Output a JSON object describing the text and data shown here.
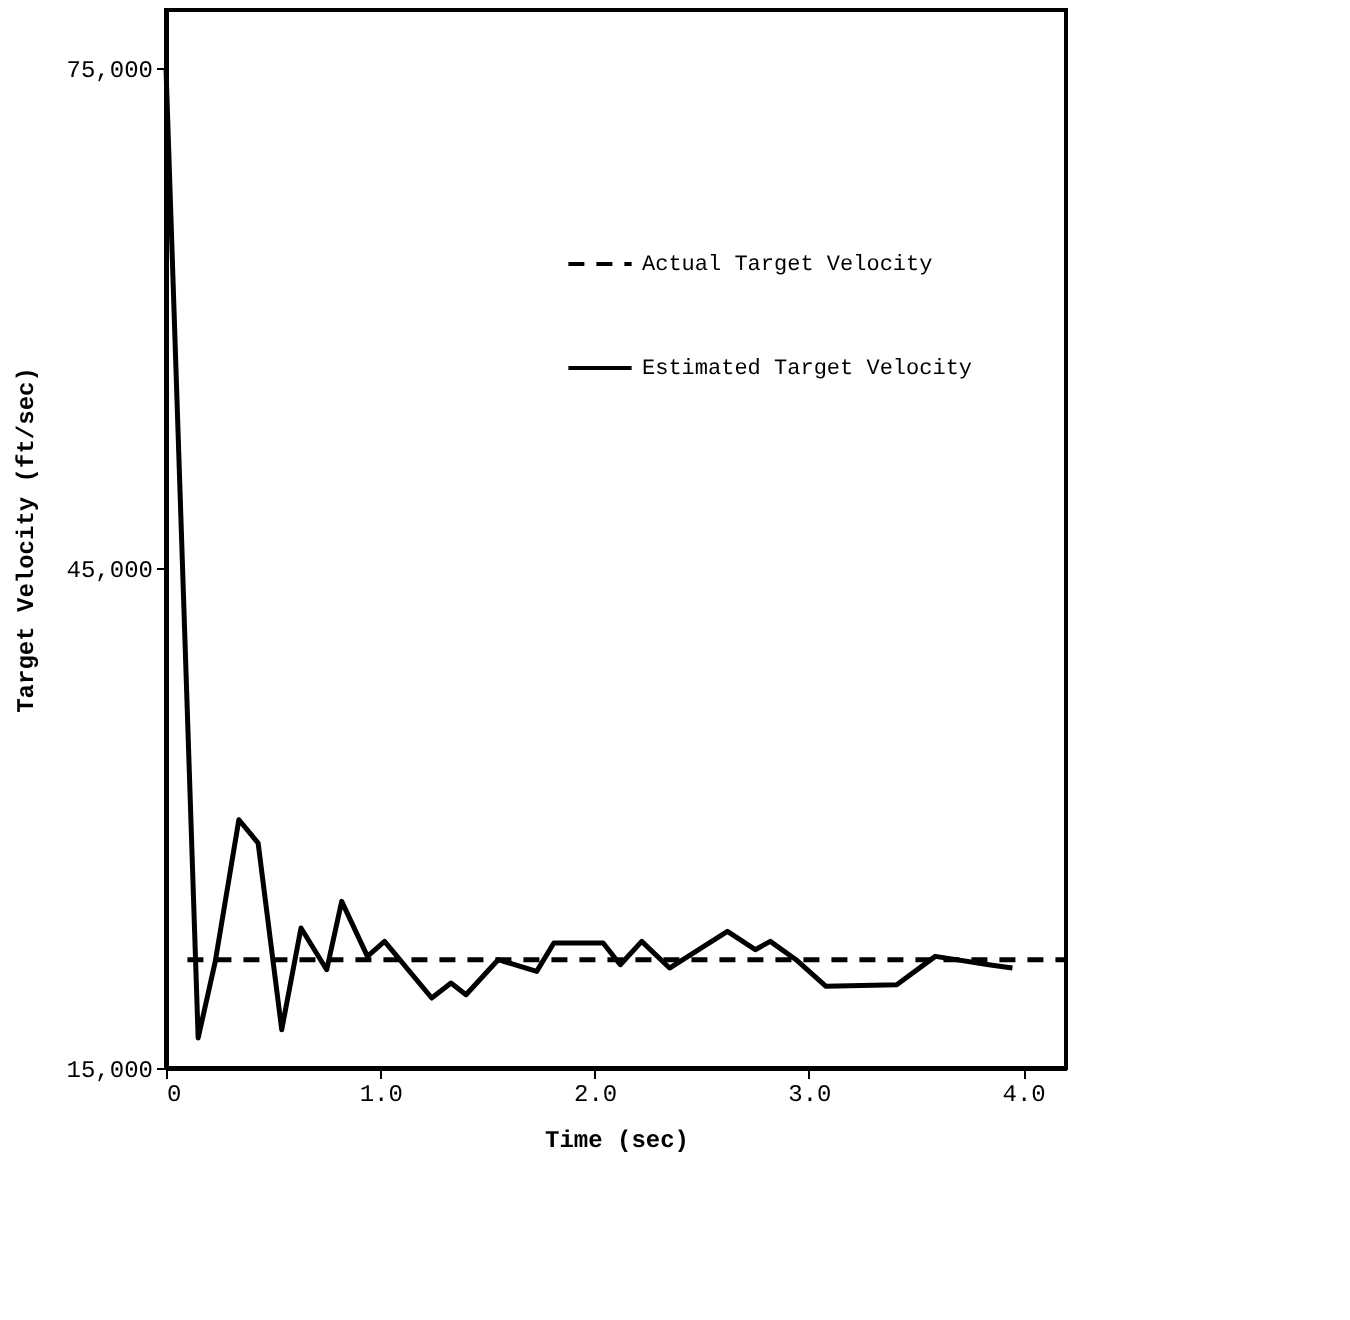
{
  "chart_data": {
    "type": "line",
    "xlabel": "Time (sec)",
    "ylabel": "Target Velocity (ft/sec)",
    "xlim": [
      0,
      4.2
    ],
    "ylim": [
      15000,
      78500
    ],
    "xticks": [
      0,
      {
        "value": 1,
        "label": "1.0"
      },
      {
        "value": 2,
        "label": "2.0"
      },
      {
        "value": 3,
        "label": "3.0"
      },
      {
        "value": 4,
        "label": "4.0"
      }
    ],
    "yticks": [
      {
        "value": 15000,
        "label": "15,000"
      },
      {
        "value": 45000,
        "label": "45,000"
      },
      {
        "value": 75000,
        "label": "75,000"
      }
    ],
    "grid": false,
    "legend": "top right",
    "marker": "none",
    "series": [
      {
        "name": "Actual Target Velocity",
        "color": "#000000",
        "line_style": "dashed",
        "x": [
          0.1,
          4.2
        ],
        "values": [
          21500,
          21500
        ]
      },
      {
        "name": "Estimated Target Velocity",
        "color": "#000000",
        "line_style": "solid",
        "x": [
          0,
          0.15,
          0.23,
          0.34,
          0.43,
          0.54,
          0.63,
          0.75,
          0.82,
          0.94,
          1.02,
          1.24,
          1.33,
          1.4,
          1.55,
          1.73,
          1.81,
          2.04,
          2.12,
          2.22,
          2.35,
          2.62,
          2.75,
          2.82,
          2.94,
          3.08,
          3.41,
          3.59,
          3.84,
          3.95
        ],
        "values": [
          75000,
          16800,
          21400,
          29900,
          28500,
          17300,
          23400,
          20900,
          25000,
          21700,
          22600,
          19200,
          20100,
          19400,
          21500,
          20800,
          22500,
          22500,
          21200,
          22600,
          21000,
          23200,
          22100,
          22600,
          21500,
          19900,
          20000,
          21700,
          21200,
          21000
        ]
      }
    ]
  }
}
